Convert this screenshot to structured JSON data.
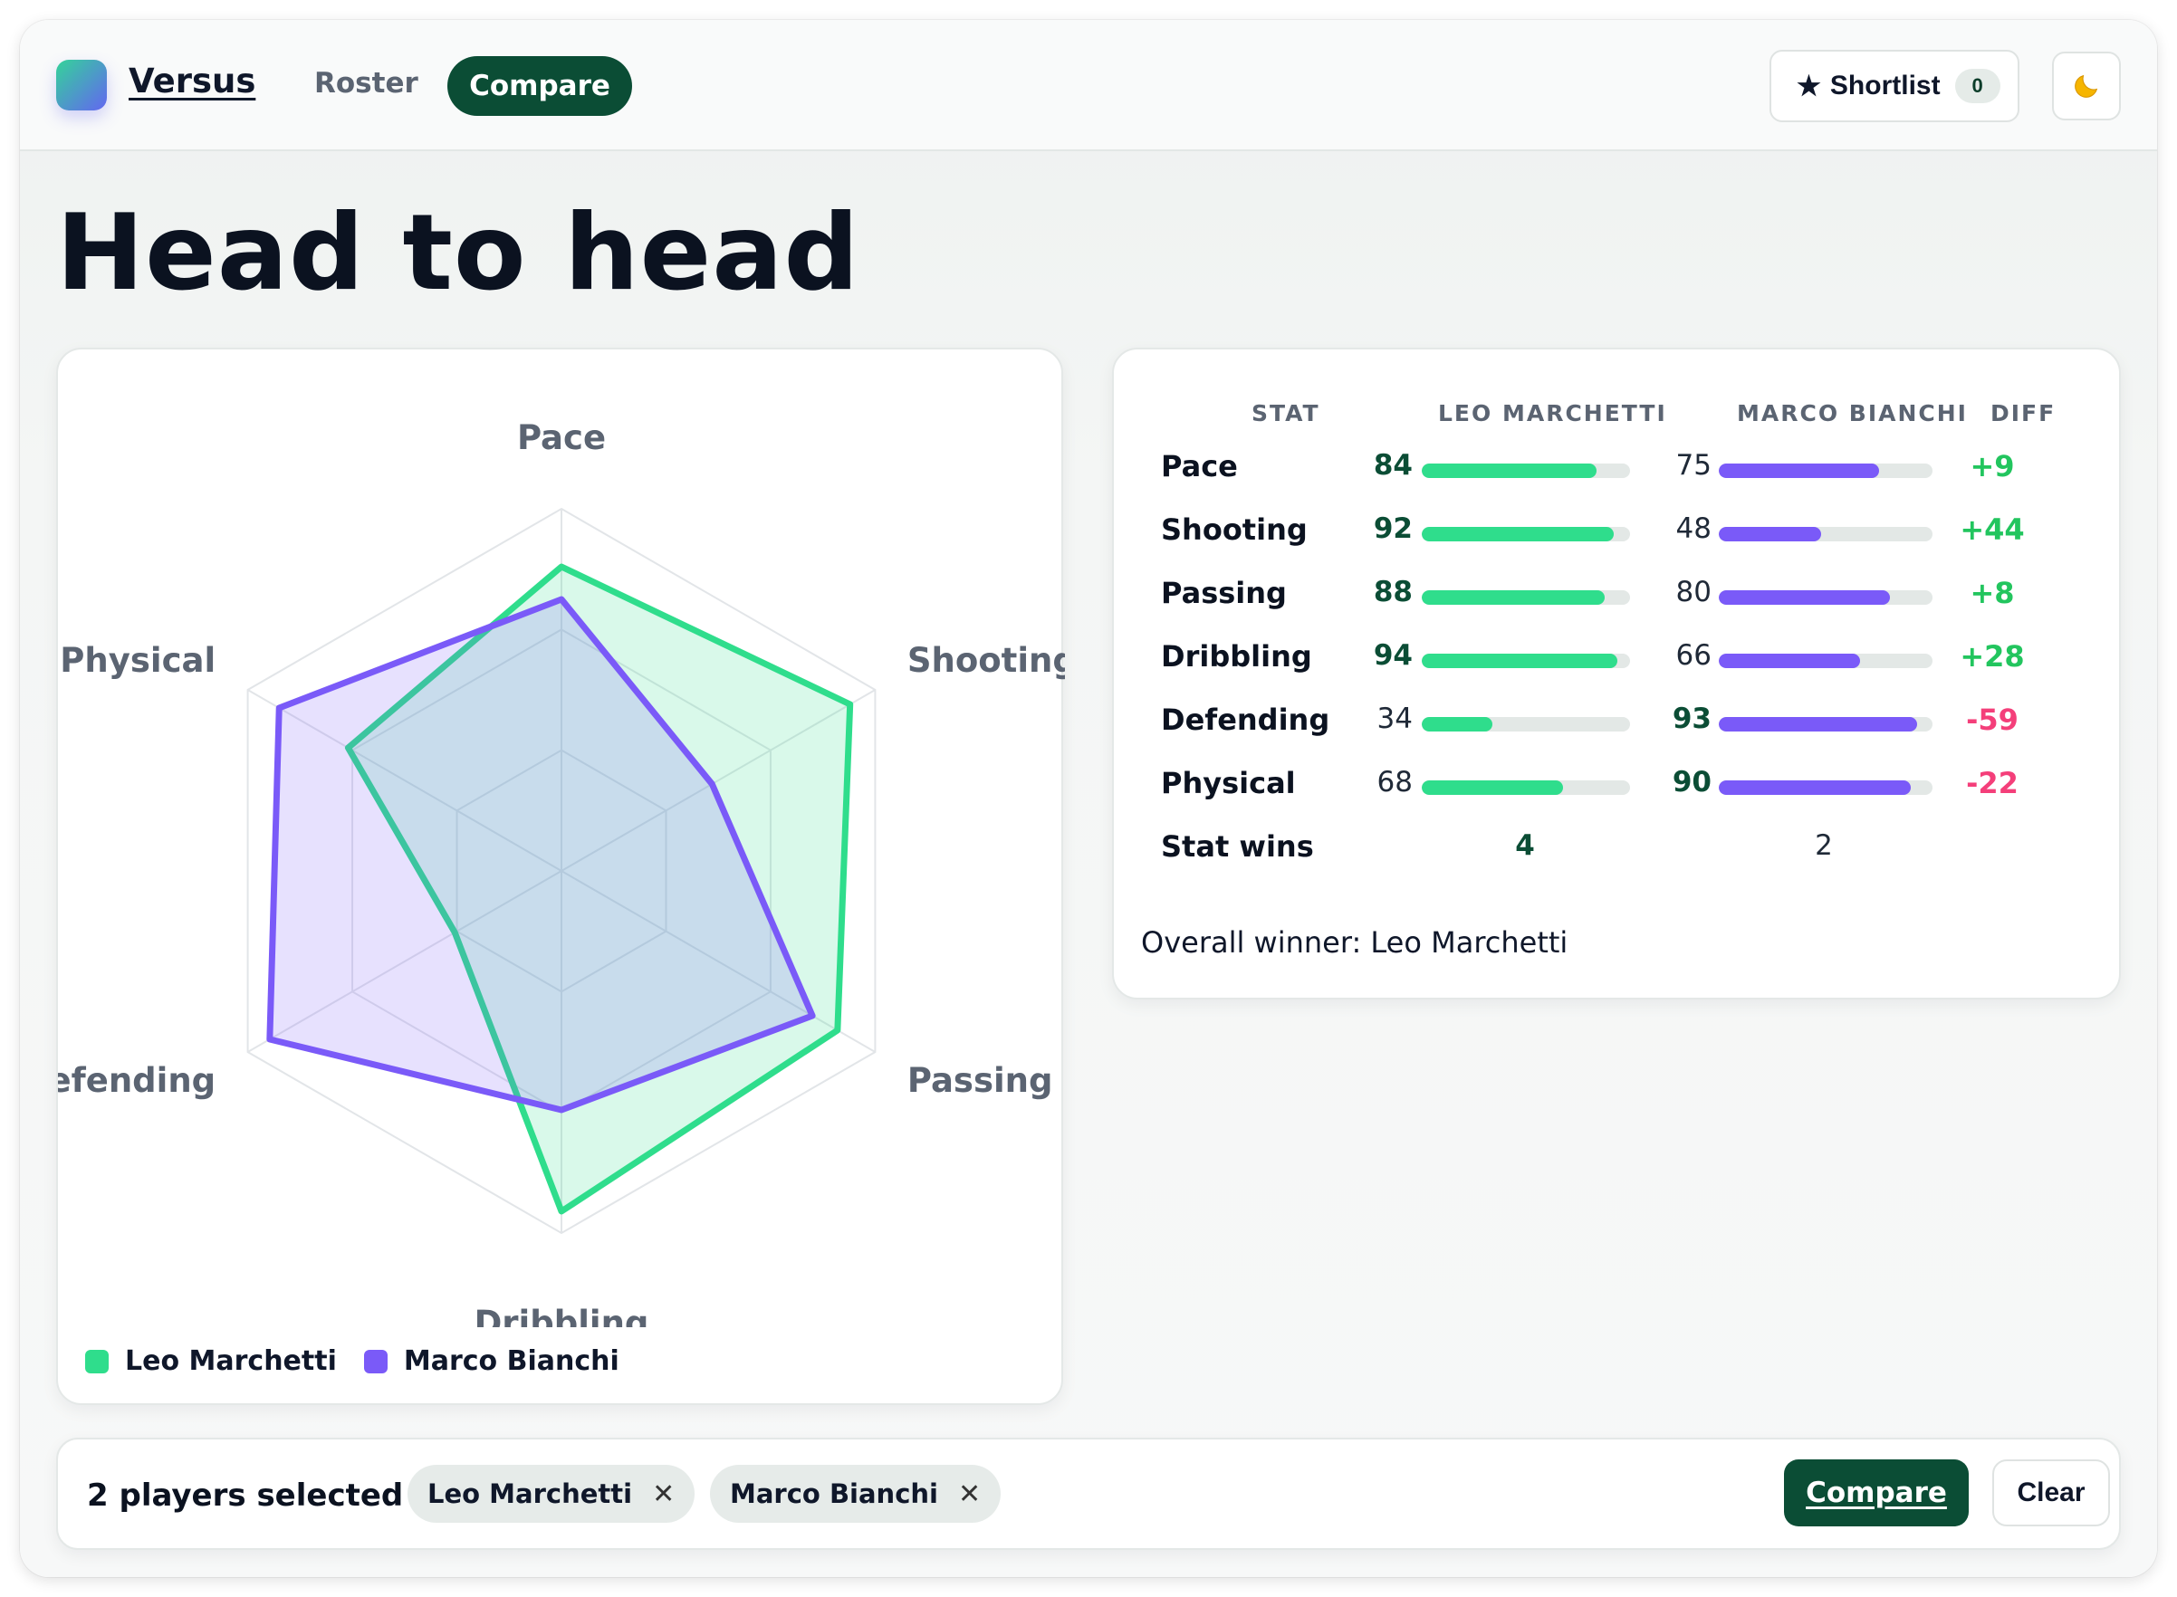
{
  "header": {
    "brand": "Versus",
    "nav": {
      "roster": "Roster",
      "compare": "Compare"
    },
    "shortlist_label": "Shortlist",
    "shortlist_count": "0",
    "shortlist_icon": "star-icon",
    "theme_icon": "moon-icon"
  },
  "page": {
    "title": "Head to head"
  },
  "colors": {
    "player_a": "#2fdd8c",
    "player_b": "#7a5af8",
    "positive": "#22c55e",
    "negative": "#f43f7a",
    "primary": "#0b4d35"
  },
  "players": [
    {
      "name": "Leo Marchetti"
    },
    {
      "name": "Marco Bianchi"
    }
  ],
  "chart_data": {
    "type": "radar",
    "axes": [
      "Pace",
      "Shooting",
      "Passing",
      "Dribbling",
      "Defending",
      "Physical"
    ],
    "range": [
      0,
      100
    ],
    "grid_rings": 3,
    "series": [
      {
        "name": "Leo Marchetti",
        "values": [
          84,
          92,
          88,
          94,
          34,
          68
        ]
      },
      {
        "name": "Marco Bianchi",
        "values": [
          75,
          48,
          80,
          66,
          93,
          90
        ]
      }
    ],
    "legend": "bottom-left"
  },
  "table": {
    "headers": {
      "stat": "STAT",
      "a": "LEO MARCHETTI",
      "b": "MARCO BIANCHI",
      "diff": "DIFF"
    },
    "rows": [
      {
        "stat": "Pace",
        "a": "84",
        "b": "75",
        "diff": "+9"
      },
      {
        "stat": "Shooting",
        "a": "92",
        "b": "48",
        "diff": "+44"
      },
      {
        "stat": "Passing",
        "a": "88",
        "b": "80",
        "diff": "+8"
      },
      {
        "stat": "Dribbling",
        "a": "94",
        "b": "66",
        "diff": "+28"
      },
      {
        "stat": "Defending",
        "a": "34",
        "b": "93",
        "diff": "-59"
      },
      {
        "stat": "Physical",
        "a": "68",
        "b": "90",
        "diff": "-22"
      }
    ],
    "wins": {
      "label": "Stat wins",
      "a": "4",
      "b": "2"
    },
    "overall_winner": "Overall winner: Leo Marchetti"
  },
  "selection": {
    "count_label": "2 players selected",
    "chips": [
      "Leo Marchetti",
      "Marco Bianchi"
    ],
    "compare_label": "Compare",
    "clear_label": "Clear"
  }
}
